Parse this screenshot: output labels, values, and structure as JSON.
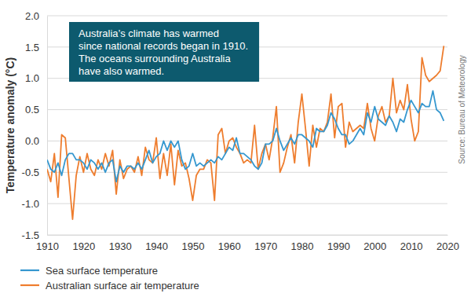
{
  "chart_data": {
    "type": "line",
    "y_label": "Temperature anomaly (°C)",
    "annotations": [
      "Australia’s climate has warmed",
      "since national records began in 1910.",
      "The oceans surrounding Australia",
      "have also warmed."
    ],
    "source": "Source: Bureau of Meteorology",
    "x": [
      1910,
      1911,
      1912,
      1913,
      1914,
      1915,
      1916,
      1917,
      1918,
      1919,
      1920,
      1921,
      1922,
      1923,
      1924,
      1925,
      1926,
      1927,
      1928,
      1929,
      1930,
      1931,
      1932,
      1933,
      1934,
      1935,
      1936,
      1937,
      1938,
      1939,
      1940,
      1941,
      1942,
      1943,
      1944,
      1945,
      1946,
      1947,
      1948,
      1949,
      1950,
      1951,
      1952,
      1953,
      1954,
      1955,
      1956,
      1957,
      1958,
      1959,
      1960,
      1961,
      1962,
      1963,
      1964,
      1965,
      1966,
      1967,
      1968,
      1969,
      1970,
      1971,
      1972,
      1973,
      1974,
      1975,
      1976,
      1977,
      1978,
      1979,
      1980,
      1981,
      1982,
      1983,
      1984,
      1985,
      1986,
      1987,
      1988,
      1989,
      1990,
      1991,
      1992,
      1993,
      1994,
      1995,
      1996,
      1997,
      1998,
      1999,
      2000,
      2001,
      2002,
      2003,
      2004,
      2005,
      2006,
      2007,
      2008,
      2009,
      2010,
      2011,
      2012,
      2013,
      2014,
      2015,
      2016,
      2017,
      2018,
      2019
    ],
    "series": [
      {
        "name": "Sea surface temperature",
        "color": "#3597cf",
        "values": [
          -0.3,
          -0.45,
          -0.5,
          -0.35,
          -0.55,
          -0.3,
          -0.2,
          -0.2,
          -0.3,
          -0.3,
          -0.35,
          -0.45,
          -0.3,
          -0.35,
          -0.45,
          -0.35,
          -0.5,
          -0.35,
          -0.3,
          -0.65,
          -0.4,
          -0.5,
          -0.4,
          -0.4,
          -0.45,
          -0.35,
          -0.45,
          -0.3,
          -0.15,
          -0.35,
          -0.25,
          -0.2,
          0.0,
          -0.15,
          0.0,
          -0.1,
          0.0,
          -0.3,
          -0.45,
          -0.4,
          -0.2,
          -0.4,
          -0.35,
          -0.4,
          -0.35,
          -0.3,
          -0.35,
          -0.25,
          -0.3,
          -0.2,
          -0.1,
          -0.15,
          0.05,
          -0.2,
          -0.2,
          -0.25,
          -0.3,
          -0.4,
          -0.45,
          -0.35,
          -0.05,
          -0.05,
          0.0,
          0.2,
          0.0,
          -0.15,
          -0.05,
          0.05,
          -0.05,
          0.1,
          0.1,
          0.05,
          0.0,
          -0.1,
          0.2,
          0.15,
          0.15,
          0.25,
          0.45,
          0.35,
          0.2,
          0.1,
          0.1,
          -0.05,
          0.0,
          0.1,
          0.2,
          0.1,
          0.45,
          0.3,
          0.55,
          0.35,
          0.3,
          0.25,
          0.4,
          0.3,
          0.15,
          0.35,
          0.3,
          0.5,
          0.65,
          0.55,
          0.45,
          0.6,
          0.55,
          0.55,
          0.8,
          0.5,
          0.45,
          0.32
        ]
      },
      {
        "name": "Australian surface air temperature",
        "color": "#ee7d2e",
        "values": [
          -0.45,
          -0.65,
          -0.2,
          -0.9,
          0.1,
          0.05,
          -0.6,
          -1.25,
          -0.55,
          -0.25,
          -0.5,
          -0.2,
          -0.45,
          -0.55,
          -0.3,
          -0.45,
          -0.2,
          -0.4,
          -0.15,
          -0.85,
          -0.3,
          -0.6,
          -0.45,
          -0.4,
          -0.5,
          -0.25,
          -0.55,
          -0.1,
          -0.3,
          -0.35,
          0.05,
          -0.6,
          -0.2,
          -0.55,
          -0.05,
          -0.7,
          -0.15,
          -0.4,
          -0.35,
          -0.6,
          -0.95,
          -0.55,
          -0.45,
          -0.45,
          -0.3,
          -0.35,
          -0.95,
          0.1,
          0.2,
          -0.2,
          0.0,
          0.05,
          -0.1,
          -0.2,
          -0.35,
          -0.3,
          -0.35,
          0.25,
          -0.45,
          -0.2,
          -0.05,
          -0.3,
          0.05,
          0.55,
          -0.5,
          -0.35,
          -0.1,
          0.1,
          -0.35,
          0.3,
          0.75,
          0.2,
          -0.4,
          0.25,
          -0.1,
          0.2,
          0.15,
          0.3,
          0.75,
          0.05,
          0.55,
          0.6,
          -0.1,
          0.3,
          0.15,
          0.2,
          0.25,
          0.2,
          0.6,
          0.2,
          0.0,
          0.4,
          0.55,
          0.3,
          0.4,
          1.0,
          0.45,
          0.65,
          0.5,
          0.9,
          0.35,
          0.0,
          0.15,
          1.33,
          1.05,
          0.95,
          1.0,
          1.05,
          1.12,
          1.52
        ]
      }
    ],
    "xlim": [
      1910,
      2020
    ],
    "xticks": [
      1910,
      1920,
      1930,
      1940,
      1950,
      1960,
      1970,
      1980,
      1990,
      2000,
      2010,
      2020
    ],
    "ylim": [
      -1.5,
      2
    ],
    "yticks": [
      -1.5,
      {
        "value": -1,
        "label": "-1.0"
      },
      -0.5,
      {
        "value": 0,
        "label": "0.0"
      },
      0.5,
      {
        "value": 1,
        "label": "1.0"
      },
      1.5,
      {
        "value": 2,
        "label": "2.0"
      }
    ],
    "grid": true,
    "legend": "bottom"
  }
}
